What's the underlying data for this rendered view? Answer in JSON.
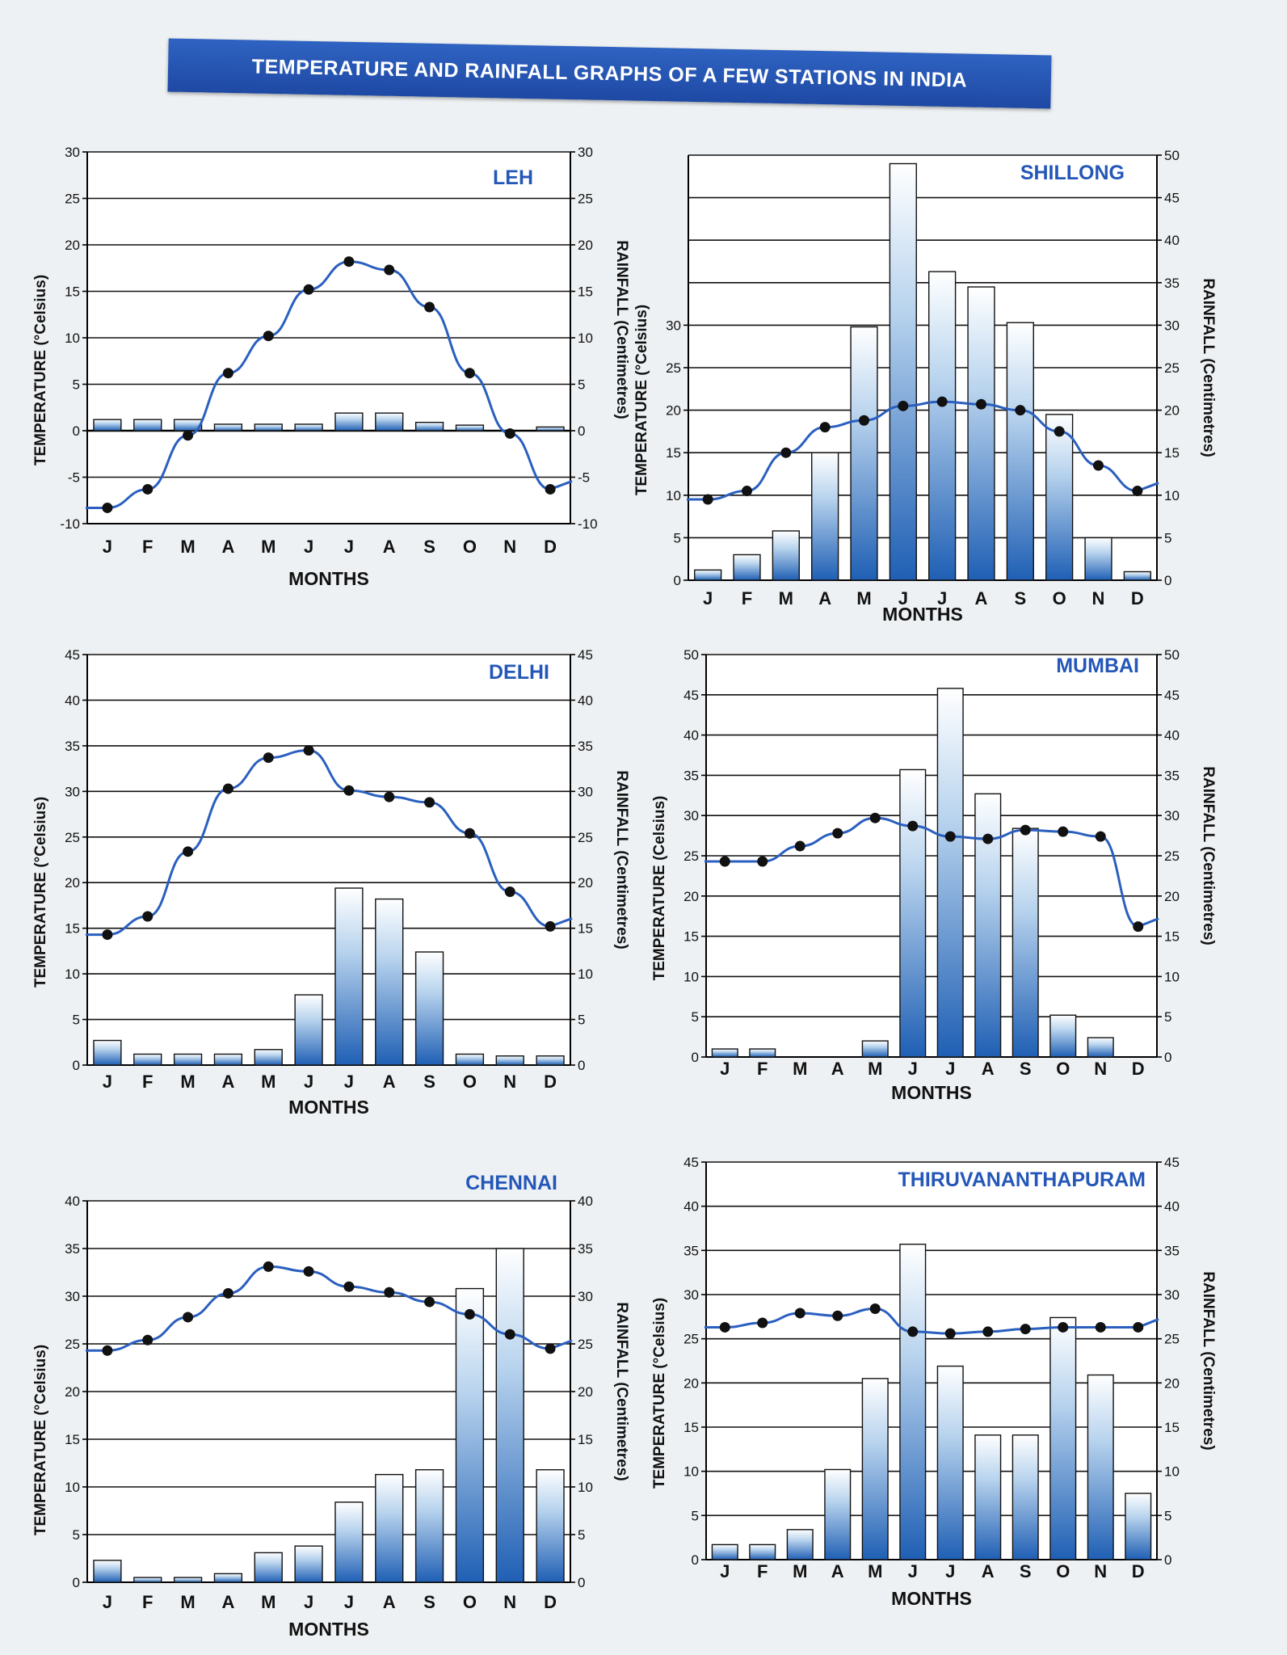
{
  "page": {
    "title": "TEMPERATURE AND RAINFALL GRAPHS OF A FEW STATIONS IN INDIA"
  },
  "chart_data": [
    {
      "type": "bar+line",
      "title": "LEH",
      "categories": [
        "J",
        "F",
        "M",
        "A",
        "M",
        "J",
        "J",
        "A",
        "S",
        "O",
        "N",
        "D"
      ],
      "xlabel": "MONTHS",
      "ylabel": "TEMPERATURE (°Celsius)",
      "y2label": "RAINFALL (Centimetres)",
      "ylim": [
        -10,
        30
      ],
      "y2lim": [
        -10,
        30
      ],
      "yticks": [
        -10,
        -5,
        0,
        5,
        10,
        15,
        20,
        25,
        30
      ],
      "y2ticks": [
        -10,
        -5,
        0,
        5,
        10,
        15,
        20,
        25,
        30
      ],
      "series": [
        {
          "name": "Temperature",
          "kind": "line",
          "axis": "left",
          "values": [
            -8.3,
            -6.3,
            -0.5,
            6.2,
            10.2,
            15.2,
            18.2,
            17.3,
            13.3,
            6.2,
            -0.3,
            -6.3
          ]
        },
        {
          "name": "Rainfall",
          "kind": "bar",
          "axis": "right",
          "values": [
            1.2,
            1.2,
            1.2,
            0.7,
            0.7,
            0.7,
            1.9,
            1.9,
            0.9,
            0.6,
            0,
            0.4
          ]
        }
      ]
    },
    {
      "type": "bar+line",
      "title": "SHILLONG",
      "categories": [
        "J",
        "F",
        "M",
        "A",
        "M",
        "J",
        "J",
        "A",
        "S",
        "O",
        "N",
        "D"
      ],
      "xlabel": "MONTHS",
      "ylabel": "TEMPERATURE (°Celsius)",
      "y2label": "RAINFALL (Centimetres)",
      "ylim": [
        0,
        50
      ],
      "y2lim": [
        0,
        50
      ],
      "yticks": [
        0,
        5,
        10,
        15,
        20,
        25,
        30
      ],
      "y2ticks": [
        0,
        5,
        10,
        15,
        20,
        25,
        30,
        35,
        40,
        45,
        50
      ],
      "series": [
        {
          "name": "Temperature",
          "kind": "line",
          "axis": "left",
          "values": [
            9.5,
            10.5,
            15,
            18,
            18.8,
            20.5,
            21,
            20.7,
            20,
            17.5,
            13.5,
            10.5
          ]
        },
        {
          "name": "Rainfall",
          "kind": "bar",
          "axis": "right",
          "values": [
            1.2,
            3,
            5.8,
            15,
            29.8,
            49,
            36.3,
            34.5,
            30.3,
            19.5,
            5,
            1
          ]
        }
      ]
    },
    {
      "type": "bar+line",
      "title": "DELHI",
      "categories": [
        "J",
        "F",
        "M",
        "A",
        "M",
        "J",
        "J",
        "A",
        "S",
        "O",
        "N",
        "D"
      ],
      "xlabel": "MONTHS",
      "ylabel": "TEMPERATURE (°Celsius)",
      "y2label": "RAINFALL (Centimetres)",
      "ylim": [
        0,
        45
      ],
      "y2lim": [
        0,
        45
      ],
      "yticks": [
        0,
        5,
        10,
        15,
        20,
        25,
        30,
        35,
        40,
        45
      ],
      "y2ticks": [
        0,
        5,
        10,
        15,
        20,
        25,
        30,
        35,
        40,
        45
      ],
      "series": [
        {
          "name": "Temperature",
          "kind": "line",
          "axis": "left",
          "values": [
            14.3,
            16.3,
            23.4,
            30.3,
            33.7,
            34.5,
            30.1,
            29.4,
            28.8,
            25.4,
            19,
            15.2
          ]
        },
        {
          "name": "Rainfall",
          "kind": "bar",
          "axis": "right",
          "values": [
            2.7,
            1.2,
            1.2,
            1.2,
            1.7,
            7.7,
            19.4,
            18.2,
            12.4,
            1.2,
            1,
            1
          ]
        }
      ]
    },
    {
      "type": "bar+line",
      "title": "MUMBAI",
      "categories": [
        "J",
        "F",
        "M",
        "A",
        "M",
        "J",
        "J",
        "A",
        "S",
        "O",
        "N",
        "D"
      ],
      "xlabel": "MONTHS",
      "ylabel": "TEMPERATURE (Celsius)",
      "y2label": "RAINFALL (Centimetres)",
      "ylim": [
        0,
        50
      ],
      "y2lim": [
        0,
        50
      ],
      "yticks": [
        0,
        5,
        10,
        15,
        20,
        25,
        30,
        35,
        40,
        45,
        50
      ],
      "y2ticks": [
        0,
        5,
        10,
        15,
        20,
        25,
        30,
        35,
        40,
        45,
        50
      ],
      "series": [
        {
          "name": "Temperature",
          "kind": "line",
          "axis": "left",
          "values": [
            24.3,
            24.3,
            26.2,
            27.8,
            29.7,
            28.7,
            27.4,
            27.1,
            28.2,
            28,
            27.4,
            16.2
          ]
        },
        {
          "name": "Rainfall",
          "kind": "bar",
          "axis": "right",
          "values": [
            1,
            1,
            0,
            0,
            2,
            35.7,
            45.8,
            32.7,
            28.4,
            5.2,
            2.4,
            0
          ]
        }
      ]
    },
    {
      "type": "bar+line",
      "title": "CHENNAI",
      "categories": [
        "J",
        "F",
        "M",
        "A",
        "M",
        "J",
        "J",
        "A",
        "S",
        "O",
        "N",
        "D"
      ],
      "xlabel": "MONTHS",
      "ylabel": "TEMPERATURE (°Celsius)",
      "y2label": "RAINFALL (Centimetres)",
      "ylim": [
        0,
        40
      ],
      "y2lim": [
        0,
        40
      ],
      "yticks": [
        0,
        5,
        10,
        15,
        20,
        25,
        30,
        35,
        40
      ],
      "y2ticks": [
        0,
        5,
        10,
        15,
        20,
        25,
        30,
        35,
        40
      ],
      "series": [
        {
          "name": "Temperature",
          "kind": "line",
          "axis": "left",
          "values": [
            24.3,
            25.4,
            27.8,
            30.3,
            33.1,
            32.6,
            31,
            30.4,
            29.4,
            28.1,
            26,
            24.5
          ]
        },
        {
          "name": "Rainfall",
          "kind": "bar",
          "axis": "right",
          "values": [
            2.3,
            0.5,
            0.5,
            0.9,
            3.1,
            3.8,
            8.4,
            11.3,
            11.8,
            30.8,
            35,
            11.8
          ]
        }
      ]
    },
    {
      "type": "bar+line",
      "title": "THIRUVANANTHAPURAM",
      "categories": [
        "J",
        "F",
        "M",
        "A",
        "M",
        "J",
        "J",
        "A",
        "S",
        "O",
        "N",
        "D"
      ],
      "xlabel": "MONTHS",
      "ylabel": "TEMPERATURE (°Celsius)",
      "y2label": "RAINFALL (Centimetres)",
      "ylim": [
        0,
        45
      ],
      "y2lim": [
        0,
        45
      ],
      "yticks": [
        0,
        5,
        10,
        15,
        20,
        25,
        30,
        35,
        40,
        45
      ],
      "y2ticks": [
        0,
        5,
        10,
        15,
        20,
        25,
        30,
        35,
        40,
        45
      ],
      "series": [
        {
          "name": "Temperature",
          "kind": "line",
          "axis": "left",
          "values": [
            26.3,
            26.8,
            27.9,
            27.6,
            28.4,
            25.8,
            25.6,
            25.8,
            26.1,
            26.3,
            26.3,
            26.3
          ]
        },
        {
          "name": "Rainfall",
          "kind": "bar",
          "axis": "right",
          "values": [
            1.7,
            1.7,
            3.4,
            10.2,
            20.5,
            35.7,
            21.9,
            14.1,
            14.1,
            27.4,
            20.9,
            7.5
          ]
        }
      ]
    }
  ]
}
